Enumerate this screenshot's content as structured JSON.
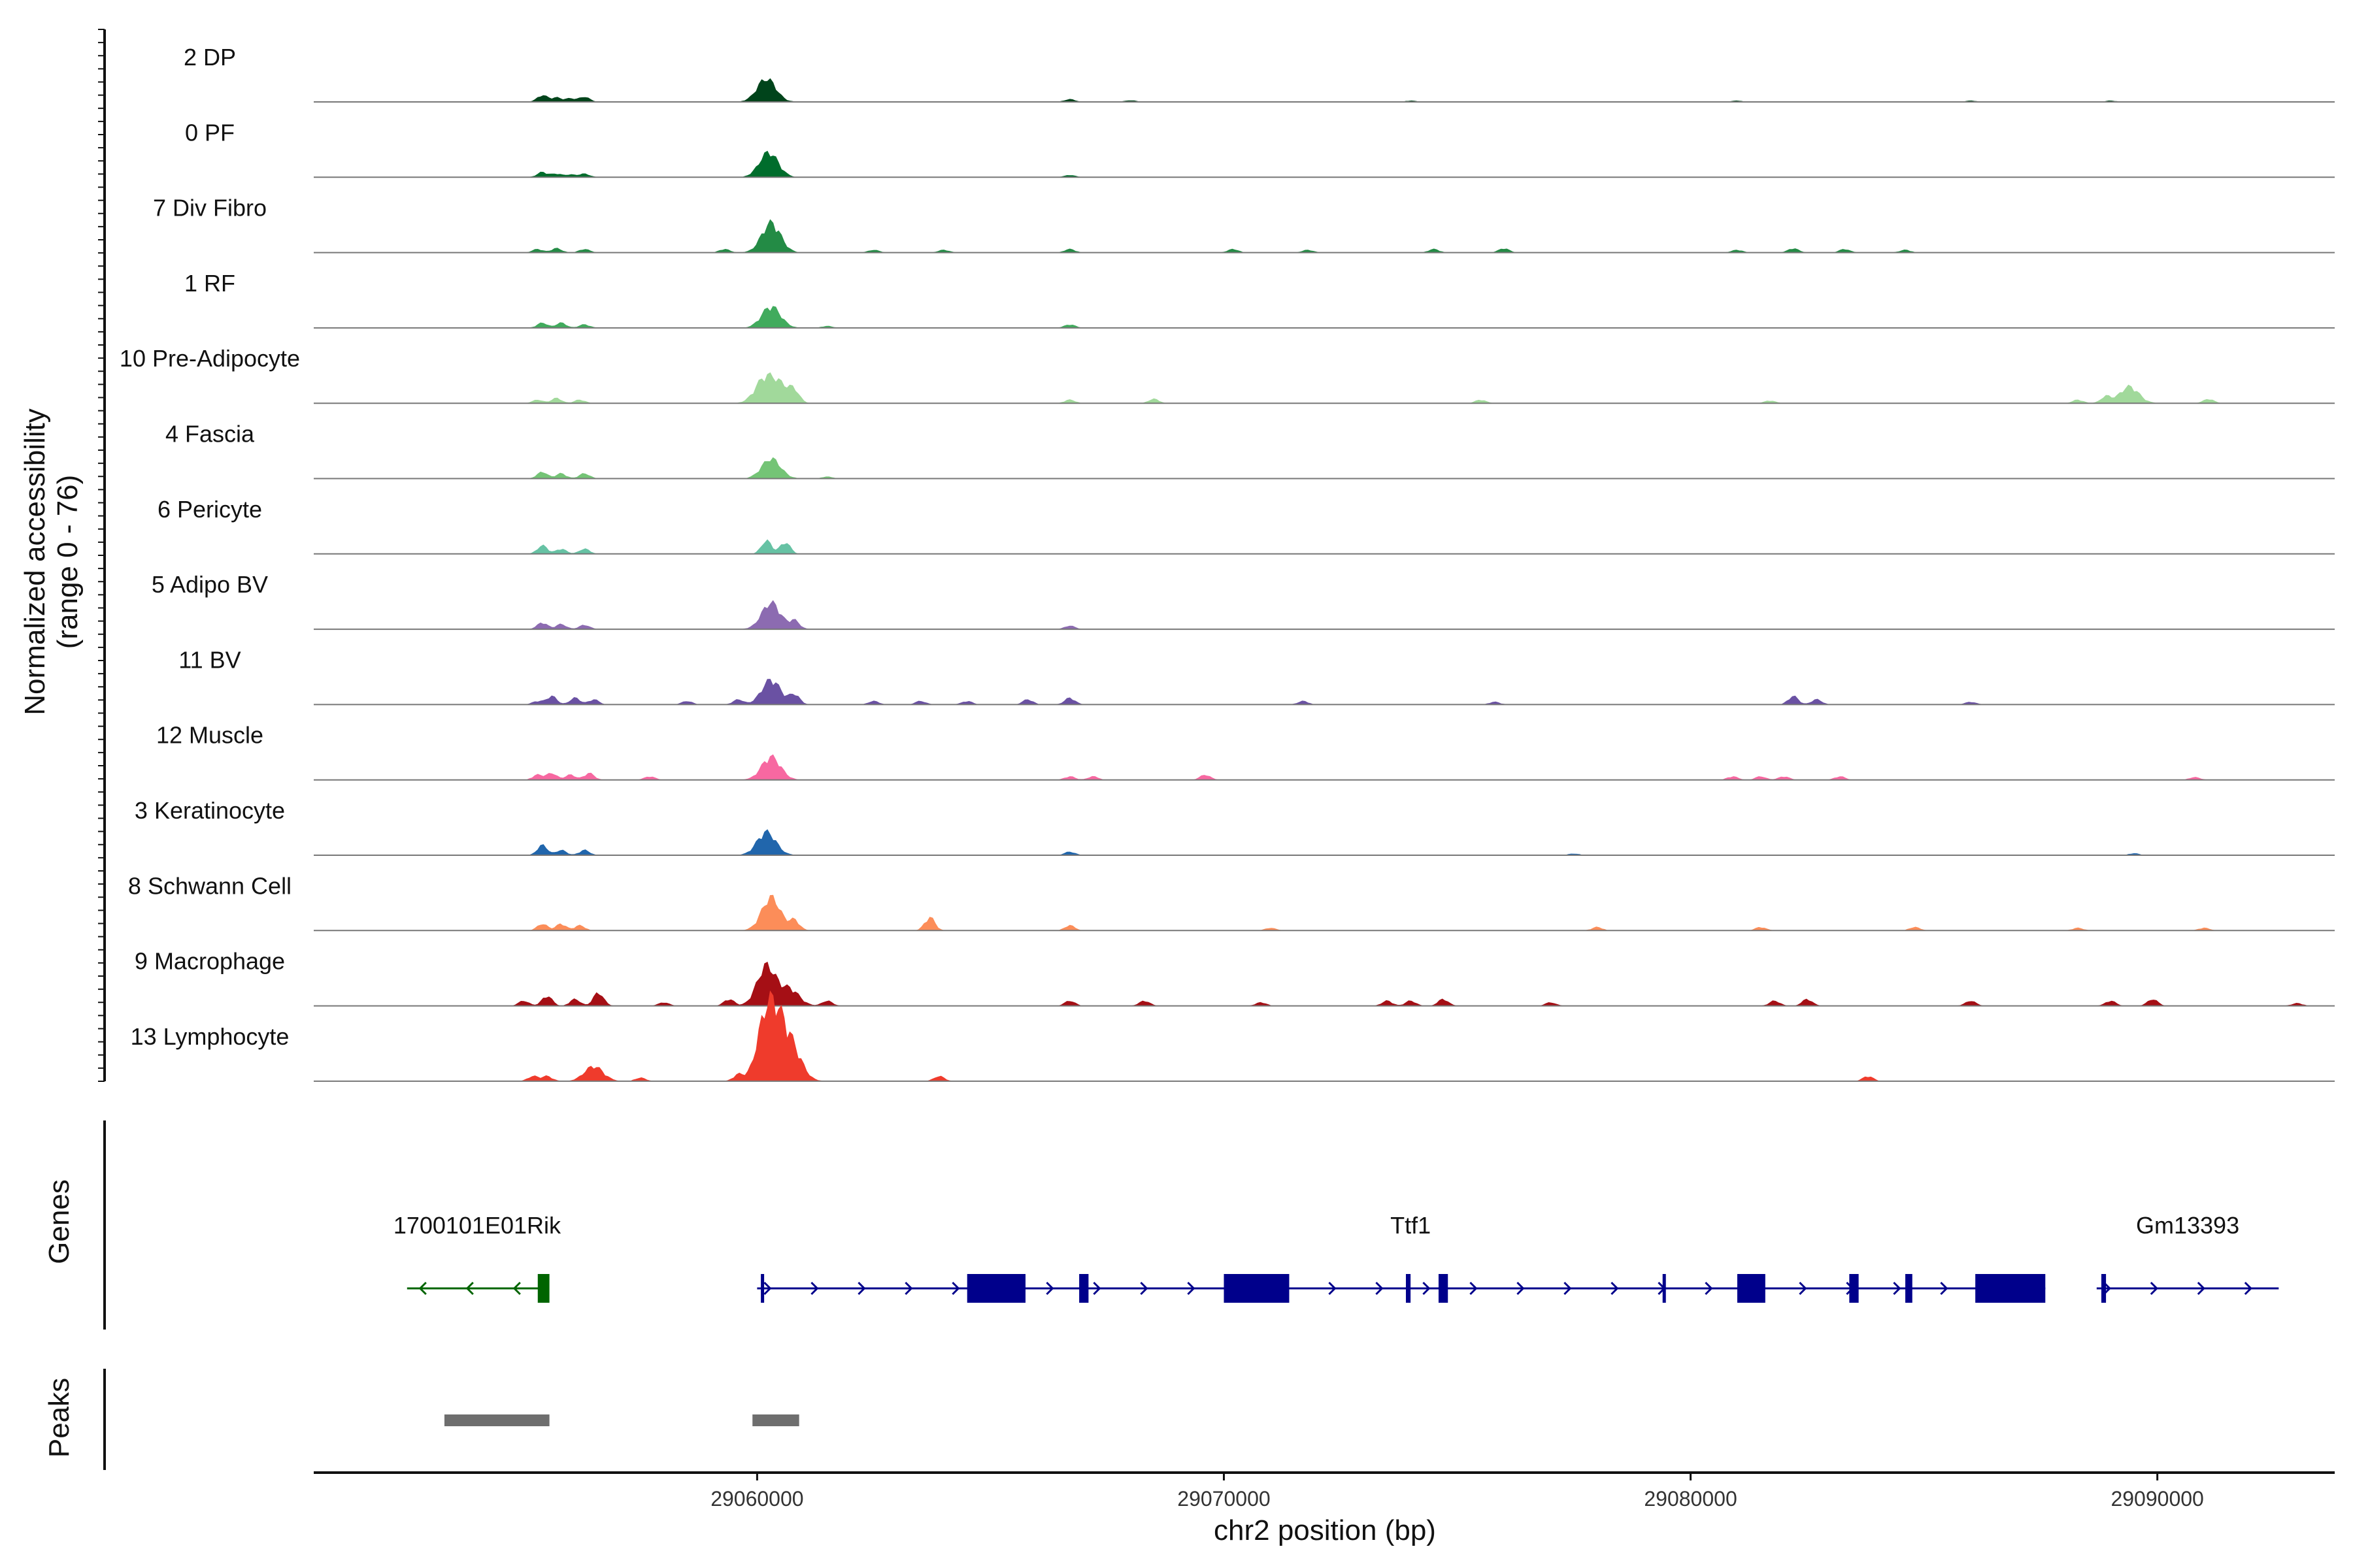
{
  "chart_data": {
    "type": "area",
    "title": "",
    "chromosome": "chr2",
    "xlabel": "chr2 position (bp)",
    "ylabel_line1": "Normalized accessibility",
    "ylabel_line2": "(range 0 - 76)",
    "yrange": [
      0,
      76
    ],
    "xlim": [
      29050500,
      29093800
    ],
    "xticks": [
      29060000,
      29070000,
      29080000,
      29090000
    ],
    "tracks": [
      {
        "label": "2 DP",
        "color": "#00441b",
        "peaks": [
          [
            29055400,
            4
          ],
          [
            29055700,
            2.5
          ],
          [
            29056000,
            2
          ],
          [
            29056300,
            3
          ],
          [
            29060200,
            14
          ],
          [
            29066700,
            1.5
          ],
          [
            29068000,
            0.8
          ],
          [
            29074000,
            0.6
          ],
          [
            29081000,
            0.6
          ],
          [
            29086000,
            0.6
          ],
          [
            29089000,
            0.6
          ]
        ]
      },
      {
        "label": "0 PF",
        "color": "#006d2c",
        "peaks": [
          [
            29055400,
            3
          ],
          [
            29055700,
            2
          ],
          [
            29056000,
            1.5
          ],
          [
            29056300,
            2
          ],
          [
            29060250,
            15
          ],
          [
            29066700,
            1.2
          ]
        ]
      },
      {
        "label": "7 Div Fibro",
        "color": "#238b45",
        "peaks": [
          [
            29055300,
            2
          ],
          [
            29055700,
            2.5
          ],
          [
            29056300,
            2
          ],
          [
            29059300,
            2
          ],
          [
            29060300,
            18
          ],
          [
            29062500,
            1.5
          ],
          [
            29064000,
            1.5
          ],
          [
            29066700,
            2
          ],
          [
            29070200,
            2
          ],
          [
            29071800,
            1.5
          ],
          [
            29074500,
            2
          ],
          [
            29076000,
            2.5
          ],
          [
            29081000,
            1.5
          ],
          [
            29082200,
            2.5
          ],
          [
            29083300,
            2
          ],
          [
            29084600,
            1.5
          ]
        ]
      },
      {
        "label": "1 RF",
        "color": "#41ab5d",
        "peaks": [
          [
            29055400,
            3
          ],
          [
            29055800,
            3
          ],
          [
            29056300,
            2
          ],
          [
            29060300,
            13
          ],
          [
            29061500,
            1
          ],
          [
            29066700,
            2
          ]
        ]
      },
      {
        "label": "10 Pre-Adipocyte",
        "color": "#a1d99b",
        "peaks": [
          [
            29055300,
            2
          ],
          [
            29055700,
            3
          ],
          [
            29056200,
            2
          ],
          [
            29060150,
            14
          ],
          [
            29060500,
            10
          ],
          [
            29060800,
            6
          ],
          [
            29066700,
            2
          ],
          [
            29068500,
            2.5
          ],
          [
            29075500,
            2
          ],
          [
            29081700,
            1.5
          ],
          [
            29088300,
            2
          ],
          [
            29088900,
            4
          ],
          [
            29089400,
            10
          ],
          [
            29091100,
            2.5
          ]
        ]
      },
      {
        "label": "4 Fascia",
        "color": "#74c476",
        "peaks": [
          [
            29055400,
            4
          ],
          [
            29055800,
            3
          ],
          [
            29056300,
            3
          ],
          [
            29060300,
            12
          ],
          [
            29061500,
            1
          ]
        ]
      },
      {
        "label": "6 Pericyte",
        "color": "#66c2a4",
        "peaks": [
          [
            29055400,
            5
          ],
          [
            29055800,
            3
          ],
          [
            29056300,
            3
          ],
          [
            29060200,
            8
          ],
          [
            29060600,
            7
          ]
        ]
      },
      {
        "label": "5 Adipo BV",
        "color": "#8c6bb1",
        "peaks": [
          [
            29055400,
            4
          ],
          [
            29055800,
            3
          ],
          [
            29056300,
            2.5
          ],
          [
            29060300,
            16
          ],
          [
            29060800,
            5
          ],
          [
            29066700,
            2
          ]
        ]
      },
      {
        "label": "11 BV",
        "color": "#6a51a3",
        "peaks": [
          [
            29055300,
            2
          ],
          [
            29055600,
            5
          ],
          [
            29056100,
            4
          ],
          [
            29056500,
            3
          ],
          [
            29058500,
            2
          ],
          [
            29059600,
            3
          ],
          [
            29060300,
            15
          ],
          [
            29060800,
            6
          ],
          [
            29062500,
            2
          ],
          [
            29063500,
            2
          ],
          [
            29064500,
            2
          ],
          [
            29065800,
            3
          ],
          [
            29066700,
            4
          ],
          [
            29071700,
            2
          ],
          [
            29075800,
            1.5
          ],
          [
            29082200,
            5
          ],
          [
            29082700,
            3
          ],
          [
            29086000,
            1.5
          ]
        ]
      },
      {
        "label": "12 Muscle",
        "color": "#f768a1",
        "peaks": [
          [
            29055300,
            3
          ],
          [
            29055600,
            4
          ],
          [
            29056000,
            3
          ],
          [
            29056400,
            4
          ],
          [
            29057700,
            2
          ],
          [
            29060300,
            14
          ],
          [
            29066700,
            2
          ],
          [
            29067200,
            2
          ],
          [
            29069600,
            3
          ],
          [
            29080900,
            2
          ],
          [
            29081500,
            2
          ],
          [
            29082000,
            2
          ],
          [
            29083200,
            2
          ],
          [
            29090800,
            1.5
          ]
        ]
      },
      {
        "label": "3 Keratinocyte",
        "color": "#2166ac",
        "peaks": [
          [
            29055400,
            6
          ],
          [
            29055800,
            3
          ],
          [
            29056300,
            3
          ],
          [
            29060200,
            14
          ],
          [
            29066700,
            2
          ],
          [
            29077500,
            0.8
          ],
          [
            29089500,
            1
          ]
        ]
      },
      {
        "label": "8 Schwann Cell",
        "color": "#fc8d59",
        "peaks": [
          [
            29055400,
            4
          ],
          [
            29055800,
            4
          ],
          [
            29056200,
            3
          ],
          [
            29060300,
            20
          ],
          [
            29060800,
            6
          ],
          [
            29063700,
            8
          ],
          [
            29066700,
            3
          ],
          [
            29071000,
            1.5
          ],
          [
            29078000,
            2
          ],
          [
            29081500,
            2
          ],
          [
            29084800,
            2
          ],
          [
            29088300,
            1.5
          ],
          [
            29091000,
            1.5
          ]
        ]
      },
      {
        "label": "9 Macrophage",
        "color": "#a50f15",
        "peaks": [
          [
            29055000,
            3
          ],
          [
            29055500,
            6
          ],
          [
            29056100,
            4
          ],
          [
            29056600,
            8
          ],
          [
            29058000,
            2
          ],
          [
            29059400,
            4
          ],
          [
            29060200,
            24
          ],
          [
            29060700,
            10
          ],
          [
            29061500,
            3
          ],
          [
            29066700,
            3
          ],
          [
            29068300,
            3
          ],
          [
            29070800,
            2
          ],
          [
            29073500,
            3
          ],
          [
            29074000,
            3
          ],
          [
            29074700,
            4
          ],
          [
            29077000,
            2
          ],
          [
            29081800,
            3
          ],
          [
            29082500,
            4
          ],
          [
            29086000,
            3
          ],
          [
            29089000,
            3
          ],
          [
            29089900,
            4
          ],
          [
            29093000,
            1.5
          ]
        ]
      },
      {
        "label": "13 Lymphocyte",
        "color": "#ef3b2c",
        "peaks": [
          [
            29055200,
            3
          ],
          [
            29055500,
            3
          ],
          [
            29056500,
            9
          ],
          [
            29057500,
            2
          ],
          [
            29059600,
            4
          ],
          [
            29060200,
            38
          ],
          [
            29060500,
            26
          ],
          [
            29060800,
            14
          ],
          [
            29063900,
            3
          ],
          [
            29083800,
            3
          ]
        ]
      }
    ],
    "genes": [
      {
        "name": "1700101E01Rik",
        "strand": "-",
        "color": "#006400",
        "start": 29052500,
        "end": 29055500,
        "exons": [
          [
            29055300,
            29055550
          ]
        ]
      },
      {
        "name": "Ttf1",
        "strand": "+",
        "color": "#00008b",
        "start": 29060000,
        "end": 29087600,
        "exons": [
          [
            29060080,
            29060150
          ],
          [
            29064500,
            29065750
          ],
          [
            29066900,
            29067100
          ],
          [
            29070000,
            29071400
          ],
          [
            29073900,
            29074000
          ],
          [
            29074600,
            29074800
          ],
          [
            29079400,
            29079450
          ],
          [
            29081000,
            29081600
          ],
          [
            29083400,
            29083600
          ],
          [
            29084600,
            29084750
          ],
          [
            29086100,
            29087600
          ]
        ]
      },
      {
        "name": "Gm13393",
        "strand": "+",
        "color": "#00008b",
        "start": 29088700,
        "end": 29092600,
        "exons": [
          [
            29088800,
            29088900
          ]
        ]
      }
    ],
    "peak_regions": [
      [
        29053300,
        29055550
      ],
      [
        29059900,
        29060900
      ]
    ],
    "track_label_text": "Genes",
    "peaks_label_text": "Peaks"
  }
}
